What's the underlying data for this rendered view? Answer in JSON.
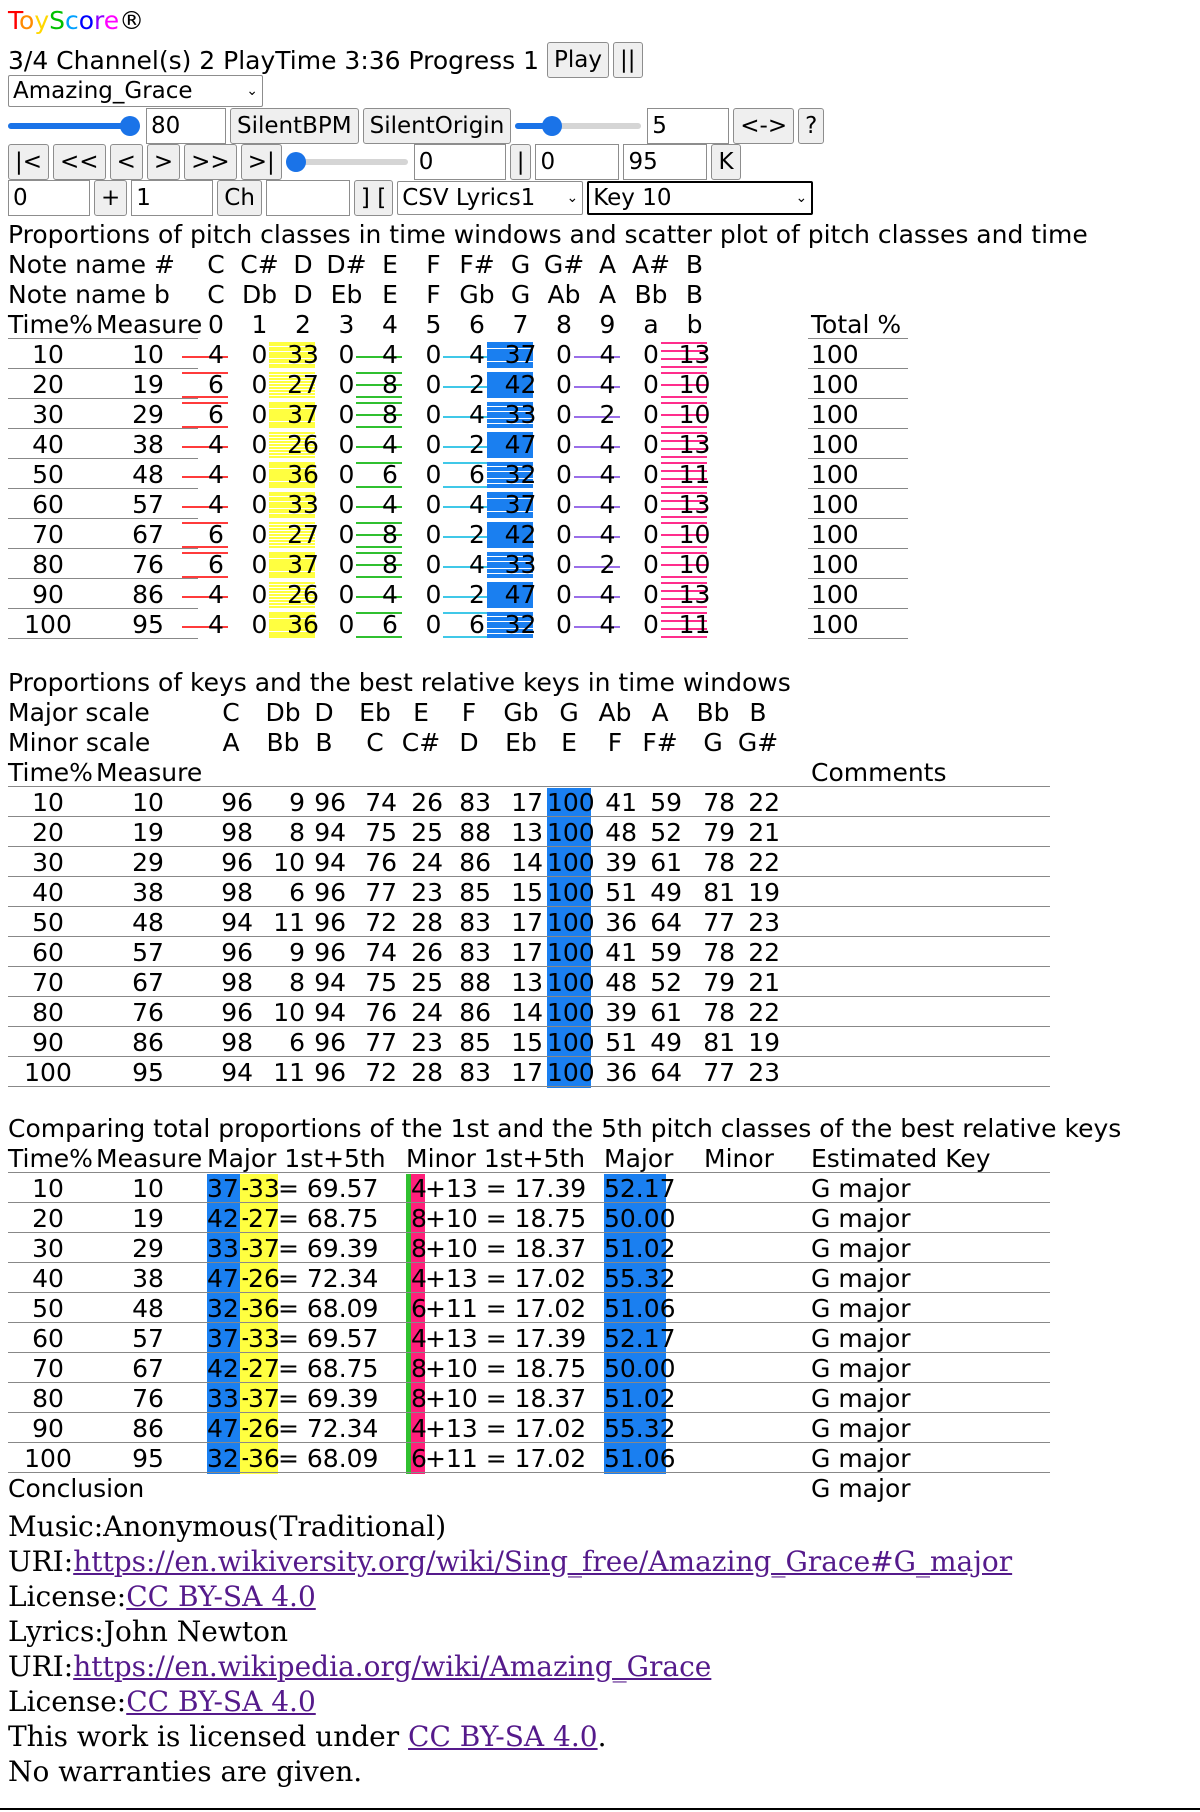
{
  "header": {
    "logo": "ToyScore",
    "logo_mark": "®",
    "status": "3/4 Channel(s) 2 PlayTime 3:36 Progress 1",
    "play": "Play",
    "pause": "||"
  },
  "logo_colors": [
    "#ff0000",
    "#ff8c00",
    "#ffd700",
    "#00c000",
    "#00a0ff",
    "#0000ff",
    "#8b00ff",
    "#ff00ff"
  ],
  "song_select": "Amazing_Grace",
  "tempo": {
    "bpm": "80",
    "silent_bpm": "SilentBPM",
    "silent_origin": "SilentOrigin",
    "volume": "5",
    "swap": "<->",
    "help": "?",
    "bpm_fraction": 1.0,
    "volume_fraction": 0.25
  },
  "nav": {
    "first": "|<",
    "rew": "<<",
    "prev": "<",
    "next": ">",
    "ff": ">>",
    "last": ">|",
    "pos": "0",
    "bar": "|",
    "from": "0",
    "to": "95",
    "k": "K",
    "position_fraction": 0.0
  },
  "edit": {
    "v1": "0",
    "plus": "+",
    "v2": "1",
    "ch": "Ch",
    "v3": "",
    "bracket": "] [",
    "lyrics": "CSV Lyrics1",
    "key": "Key 10"
  },
  "colors": {
    "C": "#ff3b3b",
    "D": "#ffff40",
    "E": "#30c030",
    "F#": "#40c8e8",
    "G": "#1a7ff0",
    "A": "#9a6ee8",
    "B": "#ff2d8c",
    "major_hl": "#1a7ff0",
    "minor_hl": "#ff1f7a",
    "minor_green": "#30c030"
  },
  "t1": {
    "title": "Proportions of pitch classes in time windows and scatter plot of pitch classes and time",
    "row_sharp": [
      "Note name #",
      "C",
      "C#",
      "D",
      "D#",
      "E",
      "F",
      "F#",
      "G",
      "G#",
      "A",
      "A#",
      "B"
    ],
    "row_flat": [
      "Note name b",
      "C",
      "Db",
      "D",
      "Eb",
      "E",
      "F",
      "Gb",
      "G",
      "Ab",
      "A",
      "Bb",
      "B"
    ],
    "row_head": [
      "Time%",
      "Measure",
      "0",
      "1",
      "2",
      "3",
      "4",
      "5",
      "6",
      "7",
      "8",
      "9",
      "a",
      "b",
      "Total %"
    ],
    "rows": [
      [
        "10",
        "10",
        "4",
        "0",
        "33",
        "0",
        "4",
        "0",
        "4",
        "37",
        "0",
        "4",
        "0",
        "13",
        "100"
      ],
      [
        "20",
        "19",
        "6",
        "0",
        "27",
        "0",
        "8",
        "0",
        "2",
        "42",
        "0",
        "4",
        "0",
        "10",
        "100"
      ],
      [
        "30",
        "29",
        "6",
        "0",
        "37",
        "0",
        "8",
        "0",
        "4",
        "33",
        "0",
        "2",
        "0",
        "10",
        "100"
      ],
      [
        "40",
        "38",
        "4",
        "0",
        "26",
        "0",
        "4",
        "0",
        "2",
        "47",
        "0",
        "4",
        "0",
        "13",
        "100"
      ],
      [
        "50",
        "48",
        "4",
        "0",
        "36",
        "0",
        "6",
        "0",
        "6",
        "32",
        "0",
        "4",
        "0",
        "11",
        "100"
      ],
      [
        "60",
        "57",
        "4",
        "0",
        "33",
        "0",
        "4",
        "0",
        "4",
        "37",
        "0",
        "4",
        "0",
        "13",
        "100"
      ],
      [
        "70",
        "67",
        "6",
        "0",
        "27",
        "0",
        "8",
        "0",
        "2",
        "42",
        "0",
        "4",
        "0",
        "10",
        "100"
      ],
      [
        "80",
        "76",
        "6",
        "0",
        "37",
        "0",
        "8",
        "0",
        "4",
        "33",
        "0",
        "2",
        "0",
        "10",
        "100"
      ],
      [
        "90",
        "86",
        "4",
        "0",
        "26",
        "0",
        "4",
        "0",
        "2",
        "47",
        "0",
        "4",
        "0",
        "13",
        "100"
      ],
      [
        "100",
        "95",
        "4",
        "0",
        "36",
        "0",
        "6",
        "0",
        "6",
        "32",
        "0",
        "4",
        "0",
        "11",
        "100"
      ]
    ]
  },
  "t2": {
    "title": "Proportions of keys and the best relative keys in time windows",
    "major": [
      "Major scale",
      "C",
      "Db",
      "D",
      "Eb",
      "E",
      "F",
      "Gb",
      "G",
      "Ab",
      "A",
      "Bb",
      "B"
    ],
    "minor": [
      "Minor scale",
      "A",
      "Bb",
      "B",
      "C",
      "C#",
      "D",
      "Eb",
      "E",
      "F",
      "F#",
      "G",
      "G#"
    ],
    "head": [
      "Time%",
      "Measure",
      "Comments"
    ],
    "rows": [
      [
        "10",
        "10",
        "96",
        "9",
        "96",
        "74",
        "26",
        "83",
        "17",
        "100",
        "41",
        "59",
        "78",
        "22"
      ],
      [
        "20",
        "19",
        "98",
        "8",
        "94",
        "75",
        "25",
        "88",
        "13",
        "100",
        "48",
        "52",
        "79",
        "21"
      ],
      [
        "30",
        "29",
        "96",
        "10",
        "94",
        "76",
        "24",
        "86",
        "14",
        "100",
        "39",
        "61",
        "78",
        "22"
      ],
      [
        "40",
        "38",
        "98",
        "6",
        "96",
        "77",
        "23",
        "85",
        "15",
        "100",
        "51",
        "49",
        "81",
        "19"
      ],
      [
        "50",
        "48",
        "94",
        "11",
        "96",
        "72",
        "28",
        "83",
        "17",
        "100",
        "36",
        "64",
        "77",
        "23"
      ],
      [
        "60",
        "57",
        "96",
        "9",
        "96",
        "74",
        "26",
        "83",
        "17",
        "100",
        "41",
        "59",
        "78",
        "22"
      ],
      [
        "70",
        "67",
        "98",
        "8",
        "94",
        "75",
        "25",
        "88",
        "13",
        "100",
        "48",
        "52",
        "79",
        "21"
      ],
      [
        "80",
        "76",
        "96",
        "10",
        "94",
        "76",
        "24",
        "86",
        "14",
        "100",
        "39",
        "61",
        "78",
        "22"
      ],
      [
        "90",
        "86",
        "98",
        "6",
        "96",
        "77",
        "23",
        "85",
        "15",
        "100",
        "51",
        "49",
        "81",
        "19"
      ],
      [
        "100",
        "95",
        "94",
        "11",
        "96",
        "72",
        "28",
        "83",
        "17",
        "100",
        "36",
        "64",
        "77",
        "23"
      ]
    ]
  },
  "t3": {
    "title": "Comparing total proportions of the 1st and the 5th pitch classes of the best relative keys",
    "head": [
      "Time%",
      "Measure",
      "Major 1st+5th",
      "Minor 1st+5th",
      "Major",
      "Minor",
      "Estimated Key"
    ],
    "rows": [
      [
        "10",
        "10",
        "37",
        "+",
        "33",
        " = 69.57",
        "4",
        "+13 = 17.39",
        "52.17",
        "G major"
      ],
      [
        "20",
        "19",
        "42",
        "+",
        "27",
        " = 68.75",
        "8",
        "+10 = 18.75",
        "50.00",
        "G major"
      ],
      [
        "30",
        "29",
        "33",
        "+",
        "37",
        " = 69.39",
        "8",
        "+10 = 18.37",
        "51.02",
        "G major"
      ],
      [
        "40",
        "38",
        "47",
        "+",
        "26",
        " = 72.34",
        "4",
        "+13 = 17.02",
        "55.32",
        "G major"
      ],
      [
        "50",
        "48",
        "32",
        "+",
        "36",
        " = 68.09",
        "6",
        "+11 = 17.02",
        "51.06",
        "G major"
      ],
      [
        "60",
        "57",
        "37",
        "+",
        "33",
        " = 69.57",
        "4",
        "+13 = 17.39",
        "52.17",
        "G major"
      ],
      [
        "70",
        "67",
        "42",
        "+",
        "27",
        " = 68.75",
        "8",
        "+10 = 18.75",
        "50.00",
        "G major"
      ],
      [
        "80",
        "76",
        "33",
        "+",
        "37",
        " = 69.39",
        "8",
        "+10 = 18.37",
        "51.02",
        "G major"
      ],
      [
        "90",
        "86",
        "47",
        "+",
        "26",
        " = 72.34",
        "4",
        "+13 = 17.02",
        "55.32",
        "G major"
      ],
      [
        "100",
        "95",
        "32",
        "+",
        "36",
        " = 68.09",
        "6",
        "+11 = 17.02",
        "51.06",
        "G major"
      ]
    ],
    "conclusion": "Conclusion",
    "conclusion_key": "G major"
  },
  "credits": {
    "music": "Music:Anonymous(Traditional)",
    "uri_label": "URI:",
    "music_uri": "https://en.wikiversity.org/wiki/Sing_free/Amazing_Grace#G_major",
    "license_label": "License:",
    "license": "CC BY-SA 4.0",
    "lyrics": "Lyrics:John Newton",
    "lyrics_uri": "https://en.wikipedia.org/wiki/Amazing_Grace",
    "work_prefix": "This work is licensed under ",
    "work_suffix": ".",
    "warranty": "No warranties are given."
  }
}
